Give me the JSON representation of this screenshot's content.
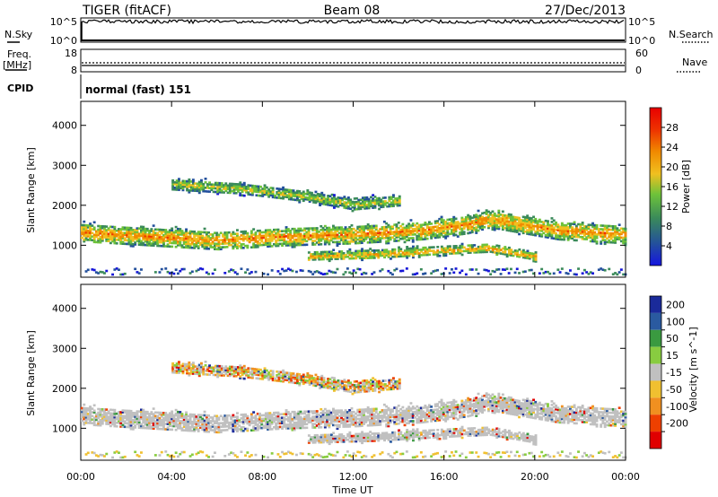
{
  "header": {
    "left_title": "TIGER (fitACF)",
    "center_title": "Beam 08",
    "right_title": "27/Dec/2013"
  },
  "top_panels": {
    "nsky_label": "N.Sky",
    "nsky_ticks": [
      "10^5",
      "10^0"
    ],
    "nsearch_label": "N.Search",
    "nsearch_ticks": [
      "10^5",
      "10^0"
    ],
    "freq_label_line1": "Freq.",
    "freq_label_line2": "[MHz]",
    "freq_ticks": [
      "18",
      "8"
    ],
    "nave_label": "Nave",
    "nave_ticks": [
      "60",
      "0"
    ],
    "cpid_label": "CPID",
    "cpid_value": "normal (fast) 151"
  },
  "chart_data": [
    {
      "type": "heatmap",
      "panel": "power",
      "xlabel": "",
      "ylabel": "Slant Range [km]",
      "y_ticks": [
        "1000",
        "2000",
        "3000",
        "4000"
      ],
      "ylim": [
        200,
        4600
      ],
      "xlim_hours": [
        0,
        24
      ],
      "colorbar_label": "Power [dB]",
      "colorbar_ticks": [
        "4",
        "8",
        "12",
        "16",
        "20",
        "24",
        "28"
      ],
      "colorbar_range": [
        0,
        32
      ],
      "colors": [
        "#1515d8",
        "#23509c",
        "#3a8a5a",
        "#6dc23a",
        "#f0c020",
        "#f08a00",
        "#ee3200",
        "#e80000"
      ],
      "echo_bands": [
        {
          "name": "main",
          "t": [
            0,
            3,
            6,
            9,
            12,
            15,
            17,
            18,
            21,
            24
          ],
          "range": [
            1300,
            1200,
            1100,
            1200,
            1250,
            1350,
            1500,
            1650,
            1350,
            1250
          ],
          "halfwidth": 220,
          "power": 22
        },
        {
          "name": "upper",
          "t": [
            4,
            7,
            10,
            12,
            14
          ],
          "range": [
            2500,
            2400,
            2200,
            2000,
            2100
          ],
          "halfwidth": 150,
          "power": 16
        },
        {
          "name": "lower",
          "t": [
            10,
            13,
            16,
            18,
            20
          ],
          "range": [
            700,
            750,
            850,
            900,
            700
          ],
          "halfwidth": 120,
          "power": 20
        }
      ]
    },
    {
      "type": "heatmap",
      "panel": "velocity",
      "xlabel": "Time UT",
      "ylabel": "Slant Range [km]",
      "x_ticks": [
        "00:00",
        "04:00",
        "08:00",
        "12:00",
        "16:00",
        "20:00",
        "00:00"
      ],
      "x_tick_hours": [
        0,
        4,
        8,
        12,
        16,
        20,
        24
      ],
      "y_ticks": [
        "1000",
        "2000",
        "3000",
        "4000"
      ],
      "ylim": [
        200,
        4600
      ],
      "colorbar_label": "Velocity [m s^-1]",
      "colorbar_ticks": [
        "200",
        "100",
        "50",
        "15",
        "-15",
        "-50",
        "-100",
        "-200"
      ],
      "colors": [
        "#1a2a9a",
        "#2a5aa0",
        "#3a9a40",
        "#88cc40",
        "#c0c0c0",
        "#f0c030",
        "#f09020",
        "#ee4000",
        "#e00000"
      ]
    }
  ]
}
